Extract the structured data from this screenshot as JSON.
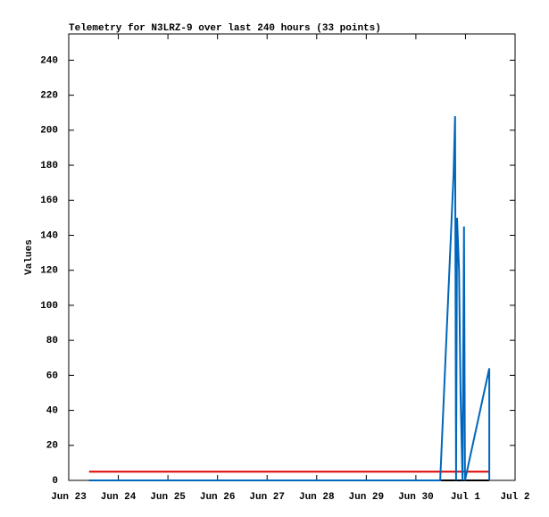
{
  "chart_data": {
    "type": "line",
    "title": "Telemetry for N3LRZ-9 over last 240 hours (33 points)",
    "ylabel": "Values",
    "xlim": [
      0,
      9
    ],
    "xticks": [
      {
        "value": 0,
        "label": "Jun 23"
      },
      {
        "value": 1,
        "label": "Jun 24"
      },
      {
        "value": 2,
        "label": "Jun 25"
      },
      {
        "value": 3,
        "label": "Jun 26"
      },
      {
        "value": 4,
        "label": "Jun 27"
      },
      {
        "value": 5,
        "label": "Jun 28"
      },
      {
        "value": 6,
        "label": "Jun 29"
      },
      {
        "value": 7,
        "label": "Jun 30"
      },
      {
        "value": 8,
        "label": "Jul 1"
      },
      {
        "value": 9,
        "label": "Jul 2"
      }
    ],
    "ylim": [
      0,
      255
    ],
    "yticks": [
      0,
      20,
      40,
      60,
      80,
      100,
      120,
      140,
      160,
      180,
      200,
      220,
      240
    ],
    "series": [
      {
        "color": "#e00000",
        "x": [
          0.41,
          8.48
        ],
        "values": [
          5,
          5
        ]
      },
      {
        "color": "#000000",
        "x": [
          0.41,
          8.48
        ],
        "values": [
          0,
          0
        ]
      },
      {
        "color": "#0066bb",
        "x": [
          0.41,
          7.49,
          7.76,
          7.79,
          7.81,
          7.83,
          7.87,
          7.9,
          7.94,
          7.97,
          7.99,
          8.48,
          8.48
        ],
        "values": [
          0,
          0,
          175,
          208,
          0,
          150,
          120,
          50,
          0,
          145,
          0,
          64,
          0
        ]
      }
    ]
  }
}
